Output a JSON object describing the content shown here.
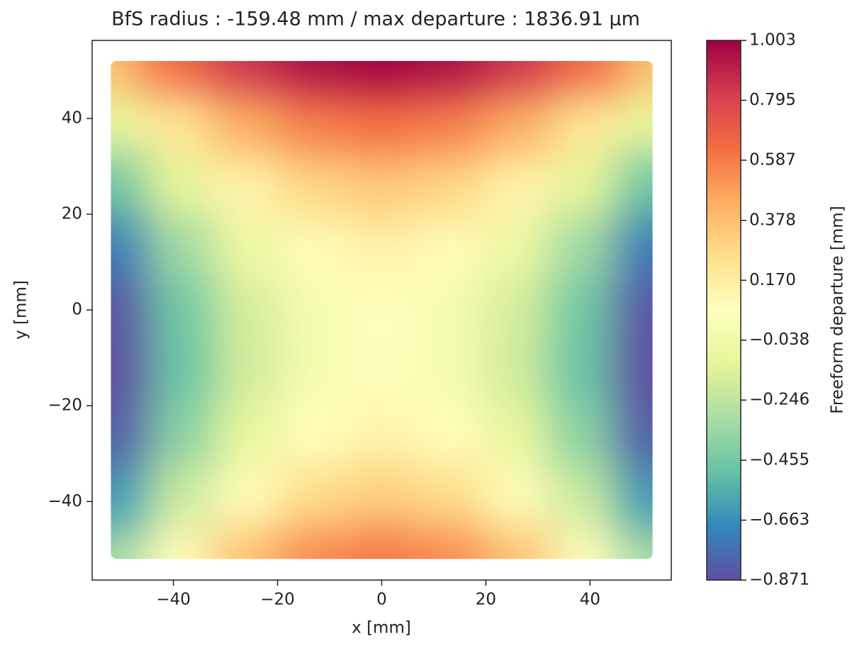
{
  "chart_data": {
    "type": "heatmap",
    "title": "BfS radius : -159.48 mm /  max departure : 1836.91 µm",
    "x_label": "x [mm]",
    "y_label": "y [mm]",
    "colorbar_label": "Freeform departure [mm]",
    "x": [
      -52,
      -39,
      -26,
      -13,
      0,
      13,
      26,
      39,
      52
    ],
    "y": [
      -52,
      -39,
      -26,
      -13,
      0,
      13,
      26,
      39,
      52
    ],
    "z": [
      [
        -0.32,
        0.083,
        0.37,
        0.543,
        0.6,
        0.543,
        0.37,
        0.083,
        -0.32
      ],
      [
        -0.626,
        -0.211,
        0.085,
        0.263,
        0.322,
        0.263,
        0.085,
        -0.211,
        -0.626
      ],
      [
        -0.82,
        -0.401,
        -0.102,
        0.078,
        0.138,
        0.078,
        -0.102,
        -0.401,
        -0.82
      ],
      [
        -0.87,
        -0.486,
        -0.19,
        -0.012,
        0.047,
        -0.012,
        -0.19,
        -0.486,
        -0.87
      ],
      [
        -0.85,
        -0.468,
        -0.18,
        -0.008,
        0.05,
        -0.008,
        -0.18,
        -0.468,
        -0.85
      ],
      [
        -0.726,
        -0.344,
        -0.071,
        0.092,
        0.147,
        0.092,
        -0.071,
        -0.344,
        -0.726
      ],
      [
        -0.47,
        -0.116,
        0.136,
        0.287,
        0.338,
        0.287,
        0.136,
        -0.116,
        -0.47
      ],
      [
        -0.101,
        0.215,
        0.441,
        0.577,
        0.622,
        0.577,
        0.441,
        0.215,
        -0.101
      ],
      [
        0.38,
        0.651,
        0.845,
        0.961,
        1.0,
        0.961,
        0.845,
        0.651,
        0.38
      ]
    ],
    "xlim": [
      -55.6,
      55.6
    ],
    "ylim": [
      -56.4,
      56.3
    ],
    "xticks": [
      {
        "value": -40,
        "label": "−40"
      },
      {
        "value": -20,
        "label": "−20"
      },
      0,
      20,
      40
    ],
    "yticks": [
      {
        "value": -40,
        "label": "−40"
      },
      {
        "value": -20,
        "label": "−20"
      },
      0,
      20,
      40
    ],
    "clim": [
      -0.871,
      1.003
    ],
    "cticks": [
      {
        "value": -0.871,
        "label": "−0.871"
      },
      {
        "value": -0.663,
        "label": "−0.663"
      },
      {
        "value": -0.455,
        "label": "−0.455"
      },
      {
        "value": -0.246,
        "label": "−0.246"
      },
      {
        "value": -0.038,
        "label": "−0.038"
      },
      {
        "value": 0.17,
        "label": "0.170"
      },
      0.378,
      0.587,
      0.795,
      1.003
    ],
    "colormap": [
      "#5e4fa2",
      "#3288bd",
      "#66c2a5",
      "#abdda4",
      "#e6f598",
      "#ffffbf",
      "#fee08b",
      "#fdae61",
      "#f46d43",
      "#d53e4f",
      "#9e0142"
    ]
  }
}
